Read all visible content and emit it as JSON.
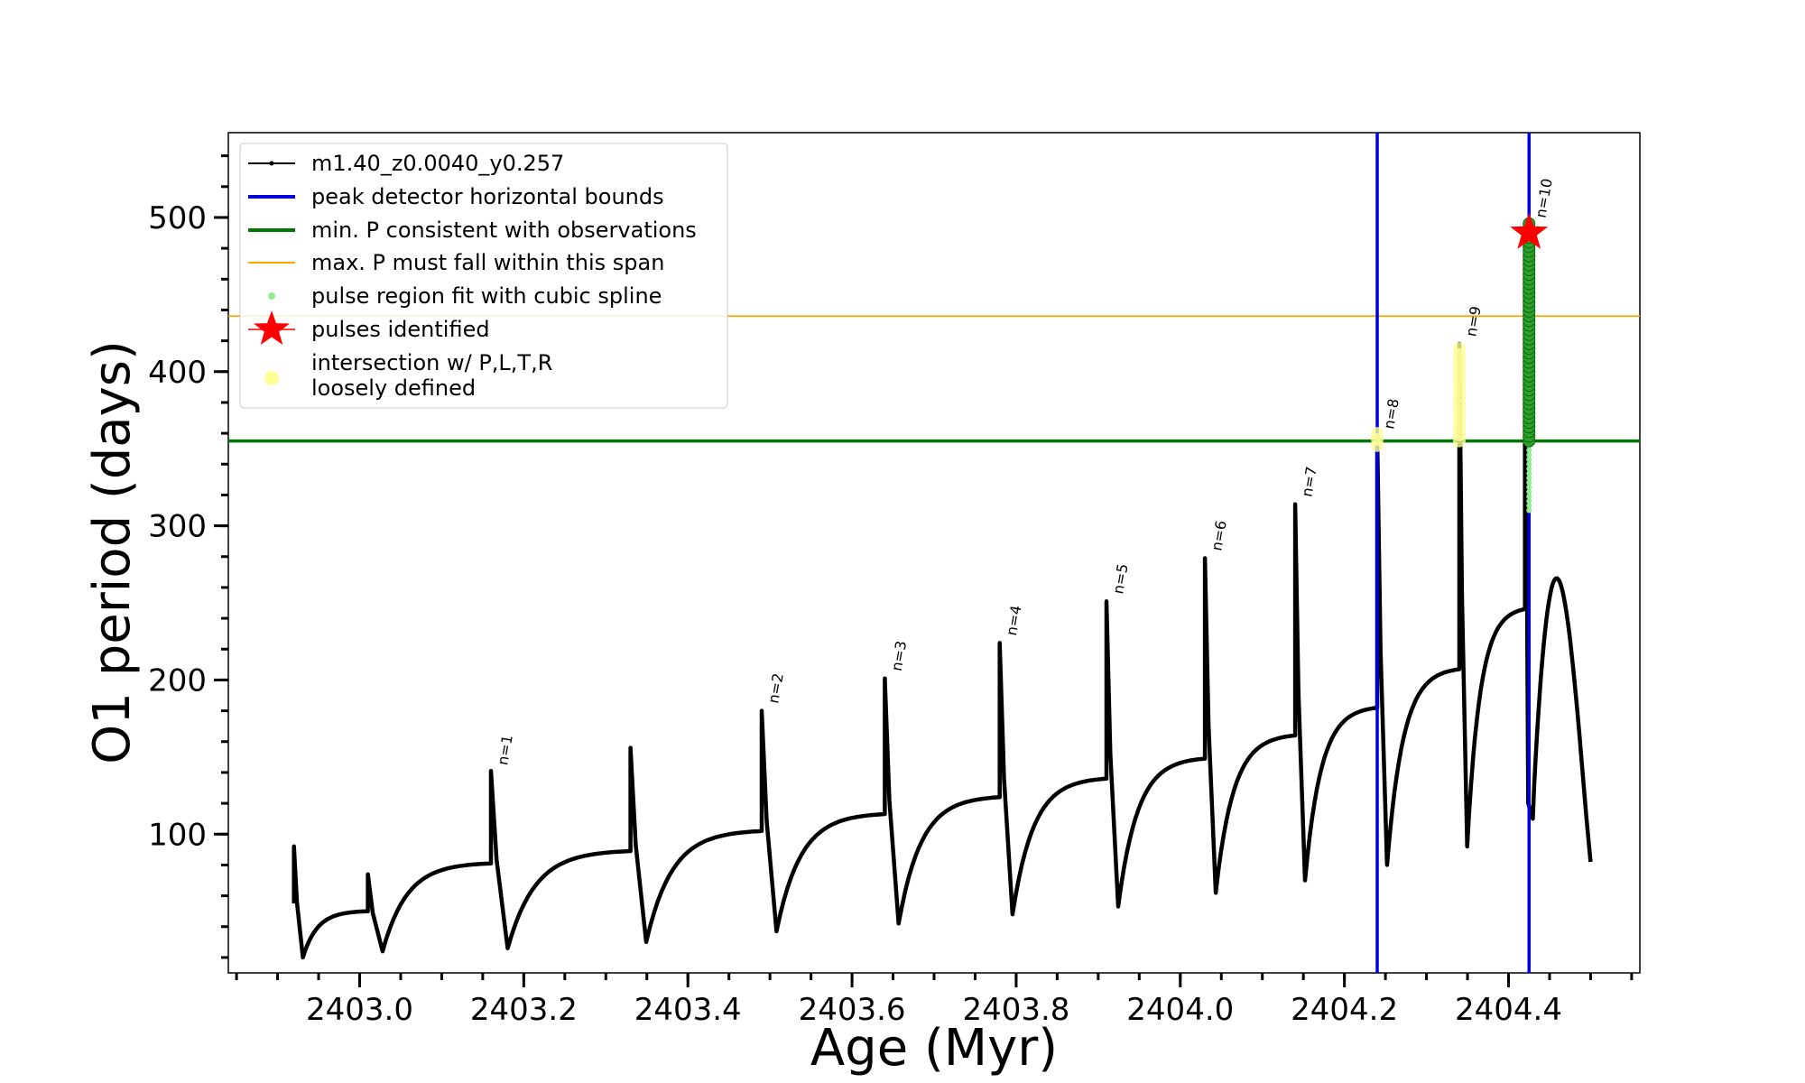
{
  "chart_data": {
    "type": "line",
    "xlabel": "Age (Myr)",
    "ylabel": "O1 period (days)",
    "xlim": [
      2402.84,
      2404.56
    ],
    "ylim": [
      10,
      555
    ],
    "x_ticks": [
      2403.0,
      2403.2,
      2403.4,
      2403.6,
      2403.8,
      2404.0,
      2404.2,
      2404.4
    ],
    "x_tick_labels": [
      "2403.0",
      "2403.2",
      "2403.4",
      "2403.6",
      "2403.8",
      "2404.0",
      "2404.2",
      "2404.4"
    ],
    "y_ticks": [
      100,
      200,
      300,
      400,
      500
    ],
    "y_tick_labels": [
      "100",
      "200",
      "300",
      "400",
      "500"
    ],
    "grid": false,
    "legend_position": "top-left",
    "series_name": "m1.40_z0.0040_y0.257",
    "series_color": "#000000",
    "pulses": [
      {
        "start": 2402.92,
        "peak": 92,
        "base": 50,
        "trough": 20
      },
      {
        "start": 2403.01,
        "peak": 74,
        "base": 81,
        "trough": 24
      },
      {
        "start": 2403.16,
        "peak": 141,
        "base": 89,
        "trough": 26
      },
      {
        "start": 2403.33,
        "peak": 156,
        "base": 102,
        "trough": 30
      },
      {
        "start": 2403.49,
        "peak": 180,
        "base": 113,
        "trough": 37
      },
      {
        "start": 2403.64,
        "peak": 201,
        "base": 124,
        "trough": 42
      },
      {
        "start": 2403.78,
        "peak": 224,
        "base": 136,
        "trough": 48
      },
      {
        "start": 2403.91,
        "peak": 251,
        "base": 149,
        "trough": 53
      },
      {
        "start": 2404.03,
        "peak": 279,
        "base": 164,
        "trough": 62
      },
      {
        "start": 2404.14,
        "peak": 314,
        "base": 182,
        "trough": 70
      },
      {
        "start": 2404.24,
        "peak": 358,
        "base": 207,
        "trough": 80
      },
      {
        "start": 2404.34,
        "peak": 418,
        "base": 246,
        "trough": 92
      },
      {
        "start": 2404.42,
        "peak": 495,
        "base": 266,
        "trough": 110
      }
    ],
    "end_age": 2404.5,
    "end_value": 82,
    "vertical_lines": [
      {
        "x": 2404.24,
        "color": "#0000dd"
      },
      {
        "x": 2404.425,
        "color": "#0000dd"
      }
    ],
    "horizontal_lines": [
      {
        "y": 355,
        "color": "#007700"
      },
      {
        "y": 436,
        "color": "#ffa500"
      }
    ],
    "pulse_labels": [
      {
        "x": 2403.16,
        "y": 142,
        "text": "n=1"
      },
      {
        "x": 2403.49,
        "y": 182,
        "text": "n=2"
      },
      {
        "x": 2403.64,
        "y": 203,
        "text": "n=3"
      },
      {
        "x": 2403.78,
        "y": 226,
        "text": "n=4"
      },
      {
        "x": 2403.91,
        "y": 253,
        "text": "n=5"
      },
      {
        "x": 2404.03,
        "y": 281,
        "text": "n=6"
      },
      {
        "x": 2404.14,
        "y": 316,
        "text": "n=7"
      },
      {
        "x": 2404.24,
        "y": 360,
        "text": "n=8"
      },
      {
        "x": 2404.34,
        "y": 420,
        "text": "n=9"
      },
      {
        "x": 2404.425,
        "y": 497,
        "text": "n=10"
      }
    ],
    "yellow_regions": [
      {
        "x": 2404.24,
        "y_min": 352,
        "y_max": 362
      },
      {
        "x": 2404.34,
        "y_min": 355,
        "y_max": 418
      }
    ],
    "green_region": {
      "x": 2404.425,
      "y_min": 310,
      "y_max": 497
    },
    "pulse_identified": {
      "x": 2404.425,
      "y": 490,
      "color": "#ff0000"
    },
    "legend": [
      {
        "label": "m1.40_z0.0040_y0.257",
        "marker": "line-dot",
        "color": "#000000"
      },
      {
        "label": "peak detector horizontal bounds",
        "marker": "line",
        "color": "#0000dd"
      },
      {
        "label": "min. P consistent with observations",
        "marker": "line",
        "color": "#007700"
      },
      {
        "label": "max. P must fall within this span",
        "marker": "thin-line",
        "color": "#ffa500"
      },
      {
        "label": "pulse region fit with cubic spline",
        "marker": "dot",
        "color": "#90ee90"
      },
      {
        "label": "pulses identified",
        "marker": "star",
        "color": "#ff0000"
      },
      {
        "label": "intersection w/ P,L,T,R",
        "label2": "loosely defined",
        "marker": "circle",
        "color": "#ffff99"
      }
    ]
  }
}
